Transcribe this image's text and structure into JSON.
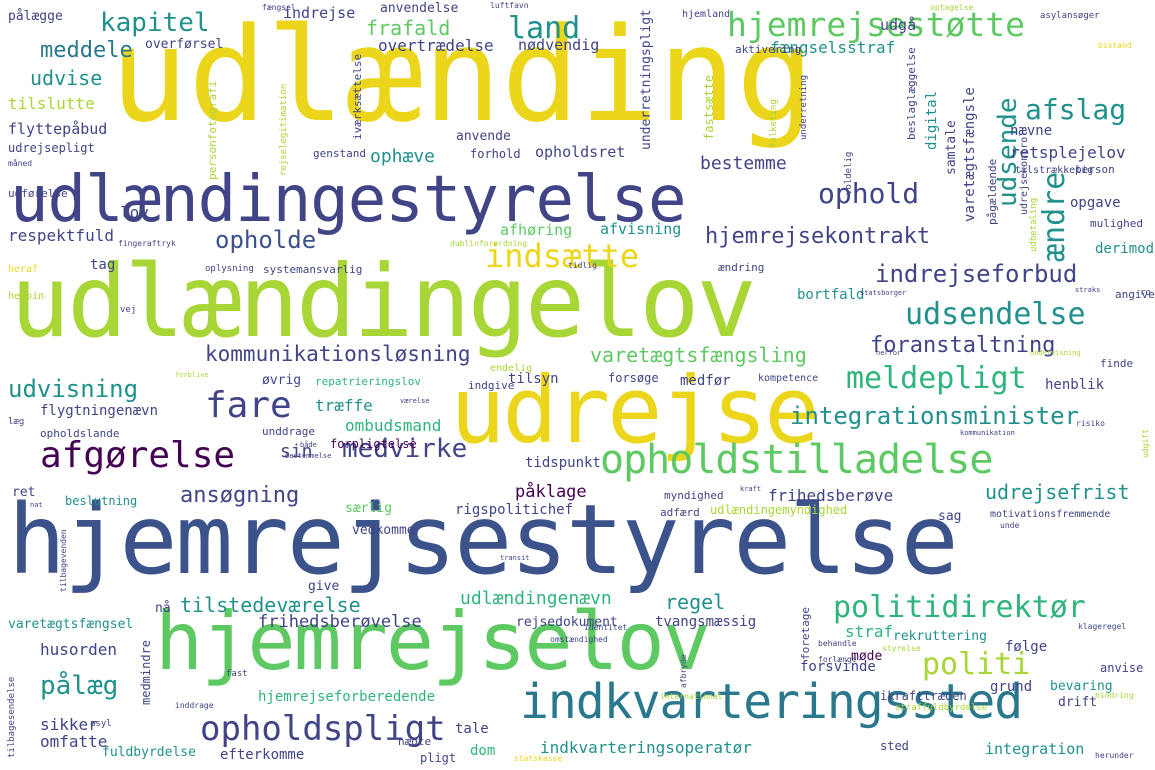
{
  "palette": {
    "yellow": "#ecd61c",
    "lime": "#a9d637",
    "green": "#5ec962",
    "teal": "#21918c",
    "blue": "#3b528b",
    "navy": "#414487",
    "purple": "#440154",
    "sea": "#2fb47c",
    "cyan": "#2a788e"
  },
  "words": [
    {
      "text": "udlænding",
      "color": "yellow"
    },
    {
      "text": "udlændingestyrelse",
      "color": "navy"
    },
    {
      "text": "udlændingelov",
      "color": "lime"
    },
    {
      "text": "hjemrejsestyrelse",
      "color": "blue"
    },
    {
      "text": "udrejse",
      "color": "yellow"
    },
    {
      "text": "hjemrejselov",
      "color": "green"
    },
    {
      "text": "indkvarteringssted",
      "color": "cyan"
    },
    {
      "text": "opholdstilladelse",
      "color": "green"
    },
    {
      "text": "hjemrejsestøtte",
      "color": "green"
    },
    {
      "text": "kommunikationsløsning",
      "color": "navy"
    },
    {
      "text": "hjemrejsekontrakt",
      "color": "navy"
    },
    {
      "text": "indrejseforbud",
      "color": "navy"
    },
    {
      "text": "udsendelse",
      "color": "teal"
    },
    {
      "text": "afgørelse",
      "color": "purple"
    },
    {
      "text": "fare",
      "color": "navy"
    },
    {
      "text": "meldepligt",
      "color": "sea"
    },
    {
      "text": "integrationsminister",
      "color": "teal"
    },
    {
      "text": "opholdspligt",
      "color": "navy"
    },
    {
      "text": "politidirektør",
      "color": "sea"
    },
    {
      "text": "politi",
      "color": "lime"
    },
    {
      "text": "pålæg",
      "color": "teal"
    },
    {
      "text": "indsætte",
      "color": "yellow"
    },
    {
      "text": "medvirke",
      "color": "navy"
    },
    {
      "text": "kapitel",
      "color": "teal"
    },
    {
      "text": "land",
      "color": "teal"
    },
    {
      "text": "afslag",
      "color": "teal"
    },
    {
      "text": "ophold",
      "color": "navy"
    },
    {
      "text": "opholde",
      "color": "blue"
    },
    {
      "text": "udvisning",
      "color": "teal"
    },
    {
      "text": "foranstaltning",
      "color": "navy"
    },
    {
      "text": "ansøgning",
      "color": "navy"
    },
    {
      "text": "varetægtsfængsling",
      "color": "green"
    },
    {
      "text": "udsende",
      "color": "teal"
    },
    {
      "text": "ændre",
      "color": "teal"
    },
    {
      "text": "meddele",
      "color": "cyan"
    },
    {
      "text": "frafald",
      "color": "green"
    },
    {
      "text": "udvise",
      "color": "teal"
    },
    {
      "text": "tilslutte",
      "color": "lime"
    },
    {
      "text": "flyttepåbud",
      "color": "navy"
    },
    {
      "text": "udrejsepligt",
      "color": "navy"
    },
    {
      "text": "lov",
      "color": "navy"
    },
    {
      "text": "respektfuld",
      "color": "navy"
    },
    {
      "text": "ophæve",
      "color": "teal"
    },
    {
      "text": "bestemme",
      "color": "navy"
    },
    {
      "text": "opholdsret",
      "color": "navy"
    },
    {
      "text": "retsplejelov",
      "color": "navy"
    },
    {
      "text": "indrejse",
      "color": "navy"
    },
    {
      "text": "overtrædelse",
      "color": "navy"
    },
    {
      "text": "nødvendig",
      "color": "navy"
    },
    {
      "text": "fængselsstraf",
      "color": "teal"
    },
    {
      "text": "overførsel",
      "color": "navy"
    },
    {
      "text": "pålægge",
      "color": "navy"
    },
    {
      "text": "udgå",
      "color": "navy"
    },
    {
      "text": "frihedsberøve",
      "color": "navy"
    },
    {
      "text": "udrejsefrist",
      "color": "teal"
    },
    {
      "text": "frihedsberøvelse",
      "color": "navy"
    },
    {
      "text": "tilstedeværelse",
      "color": "teal"
    },
    {
      "text": "udlændingenævn",
      "color": "sea"
    },
    {
      "text": "regel",
      "color": "teal"
    },
    {
      "text": "påklage",
      "color": "purple"
    },
    {
      "text": "træffe",
      "color": "teal"
    },
    {
      "text": "ombudsmand",
      "color": "sea"
    },
    {
      "text": "tidspunkt",
      "color": "navy"
    },
    {
      "text": "afhøring",
      "color": "green"
    },
    {
      "text": "afvisning",
      "color": "teal"
    },
    {
      "text": "bortfald",
      "color": "teal"
    },
    {
      "text": "tag",
      "color": "navy"
    },
    {
      "text": "husorden",
      "color": "navy"
    },
    {
      "text": "sikker",
      "color": "navy"
    },
    {
      "text": "omfatte",
      "color": "navy"
    },
    {
      "text": "tale",
      "color": "navy"
    },
    {
      "text": "dom",
      "color": "sea"
    },
    {
      "text": "indkvarteringsoperatør",
      "color": "teal"
    },
    {
      "text": "integration",
      "color": "teal"
    },
    {
      "text": "efterkomme",
      "color": "navy"
    },
    {
      "text": "fuldbyrdelse",
      "color": "teal"
    },
    {
      "text": "hjemrejseforberedende",
      "color": "sea"
    },
    {
      "text": "rejsedokument",
      "color": "navy"
    },
    {
      "text": "tvangsmæssig",
      "color": "navy"
    },
    {
      "text": "forsvinde",
      "color": "navy"
    },
    {
      "text": "straf",
      "color": "sea"
    },
    {
      "text": "rekruttering",
      "color": "teal"
    },
    {
      "text": "følge",
      "color": "navy"
    },
    {
      "text": "grund",
      "color": "navy"
    },
    {
      "text": "varetægtsfængsel",
      "color": "teal"
    },
    {
      "text": "rigspolitichef",
      "color": "navy"
    },
    {
      "text": "udlændingemyndighed",
      "color": "lime"
    },
    {
      "text": "særlig",
      "color": "green"
    },
    {
      "text": "vedkomme",
      "color": "navy"
    },
    {
      "text": "beslutning",
      "color": "teal"
    },
    {
      "text": "ret",
      "color": "navy"
    },
    {
      "text": "sin",
      "color": "navy"
    },
    {
      "text": "give",
      "color": "navy"
    },
    {
      "text": "nå",
      "color": "navy"
    },
    {
      "text": "øvrig",
      "color": "navy"
    },
    {
      "text": "tilsyn",
      "color": "navy"
    },
    {
      "text": "medfør",
      "color": "navy"
    },
    {
      "text": "henblik",
      "color": "navy"
    },
    {
      "text": "flygtningenævn",
      "color": "navy"
    },
    {
      "text": "opholdslande",
      "color": "navy"
    },
    {
      "text": "unddrage",
      "color": "navy"
    },
    {
      "text": "forpligtelse",
      "color": "purple"
    },
    {
      "text": "indgive",
      "color": "navy"
    },
    {
      "text": "forsøge",
      "color": "navy"
    },
    {
      "text": "kompetence",
      "color": "navy"
    },
    {
      "text": "repatrieringslov",
      "color": "sea"
    },
    {
      "text": "endelig",
      "color": "lime"
    },
    {
      "text": "systemansvarlig",
      "color": "navy"
    },
    {
      "text": "ændring",
      "color": "navy"
    },
    {
      "text": "oplysning",
      "color": "navy"
    },
    {
      "text": "heraf",
      "color": "yellow"
    },
    {
      "text": "fingeraftryk",
      "color": "navy"
    },
    {
      "text": "tidlig",
      "color": "navy"
    },
    {
      "text": "dublinforordning",
      "color": "lime"
    },
    {
      "text": "genstand",
      "color": "navy"
    },
    {
      "text": "forhold",
      "color": "navy"
    },
    {
      "text": "anvende",
      "color": "navy"
    },
    {
      "text": "anvendelse",
      "color": "navy"
    },
    {
      "text": "nævne",
      "color": "navy"
    },
    {
      "text": "myndighed",
      "color": "navy"
    },
    {
      "text": "adfærd",
      "color": "navy"
    },
    {
      "text": "sag",
      "color": "navy"
    },
    {
      "text": "motivationsfremmende",
      "color": "navy"
    },
    {
      "text": "mulighed",
      "color": "navy"
    },
    {
      "text": "person",
      "color": "navy"
    },
    {
      "text": "tilstrækkelig",
      "color": "navy"
    },
    {
      "text": "opgave",
      "color": "navy"
    },
    {
      "text": "derimod",
      "color": "teal"
    },
    {
      "text": "finde",
      "color": "navy"
    },
    {
      "text": "angive",
      "color": "navy"
    },
    {
      "text": "bevaring",
      "color": "teal"
    },
    {
      "text": "drift",
      "color": "navy"
    },
    {
      "text": "anvise",
      "color": "navy"
    },
    {
      "text": "ikrafttræden",
      "color": "navy"
    },
    {
      "text": "sted",
      "color": "navy"
    },
    {
      "text": "pligt",
      "color": "navy"
    },
    {
      "text": "nægte",
      "color": "navy"
    },
    {
      "text": "møde",
      "color": "purple"
    },
    {
      "text": "aktivering",
      "color": "navy"
    },
    {
      "text": "hjemland",
      "color": "navy"
    },
    {
      "text": "asylansøger",
      "color": "navy"
    },
    {
      "text": "optagelse",
      "color": "lime"
    },
    {
      "text": "bistand",
      "color": "yellow"
    },
    {
      "text": "fængsel",
      "color": "navy"
    },
    {
      "text": "luftfavn",
      "color": "navy"
    },
    {
      "text": "måned",
      "color": "navy"
    },
    {
      "text": "personfotografi",
      "color": "lime"
    },
    {
      "text": "udførelse",
      "color": "navy"
    },
    {
      "text": "heroin",
      "color": "lime"
    },
    {
      "text": "vej",
      "color": "navy"
    },
    {
      "text": "læg",
      "color": "navy"
    },
    {
      "text": "asyl",
      "color": "navy"
    },
    {
      "text": "fast",
      "color": "navy"
    },
    {
      "text": "inddrage",
      "color": "navy"
    },
    {
      "text": "identitet",
      "color": "navy"
    },
    {
      "text": "omstændighed",
      "color": "navy"
    },
    {
      "text": "behandle",
      "color": "navy"
    },
    {
      "text": "forlænge",
      "color": "navy"
    },
    {
      "text": "styrelse",
      "color": "lime"
    },
    {
      "text": "international",
      "color": "lime"
    },
    {
      "text": "straffuldbyrdelse",
      "color": "lime"
    },
    {
      "text": "hindring",
      "color": "lime"
    },
    {
      "text": "herunder",
      "color": "navy"
    },
    {
      "text": "statskasse",
      "color": "yellow"
    },
    {
      "text": "klageregel",
      "color": "navy"
    },
    {
      "text": "kraft",
      "color": "navy"
    },
    {
      "text": "transit",
      "color": "navy"
    },
    {
      "text": "unde",
      "color": "navy"
    },
    {
      "text": "risiko",
      "color": "navy"
    },
    {
      "text": "kommunikation",
      "color": "navy"
    },
    {
      "text": "statsborger",
      "color": "navy"
    },
    {
      "text": "straks",
      "color": "navy"
    },
    {
      "text": "herfor",
      "color": "navy"
    },
    {
      "text": "undervisning",
      "color": "lime"
    },
    {
      "text": "forblive",
      "color": "lime"
    },
    {
      "text": "værelse",
      "color": "navy"
    },
    {
      "text": "både",
      "color": "navy"
    },
    {
      "text": "bestemmelse",
      "color": "navy"
    },
    {
      "text": "nat",
      "color": "navy"
    },
    {
      "text": "rejselegitimation",
      "color": "lime"
    },
    {
      "text": "iværksættelse",
      "color": "navy"
    },
    {
      "text": "underretningspligt",
      "color": "navy"
    },
    {
      "text": "fastsætte",
      "color": "lime"
    },
    {
      "text": "digital",
      "color": "teal"
    },
    {
      "text": "samtale",
      "color": "navy"
    },
    {
      "text": "varetægtsfængsle",
      "color": "navy"
    },
    {
      "text": "beslaglæggelse",
      "color": "navy"
    },
    {
      "text": "pågældende",
      "color": "navy"
    },
    {
      "text": "udrejsekontrol",
      "color": "navy"
    },
    {
      "text": "folketing",
      "color": "lime"
    },
    {
      "text": "underretning",
      "color": "navy"
    },
    {
      "text": "voldelig",
      "color": "navy"
    },
    {
      "text": "udbetaling",
      "color": "lime"
    },
    {
      "text": "tilbagesendelse",
      "color": "navy"
    },
    {
      "text": "tilbagevenden",
      "color": "navy"
    },
    {
      "text": "medmindre",
      "color": "navy"
    },
    {
      "text": "foretage",
      "color": "navy"
    },
    {
      "text": "afbryde",
      "color": "navy"
    },
    {
      "text": "udgift",
      "color": "lime"
    },
    {
      "text": "ro",
      "color": "navy"
    }
  ]
}
